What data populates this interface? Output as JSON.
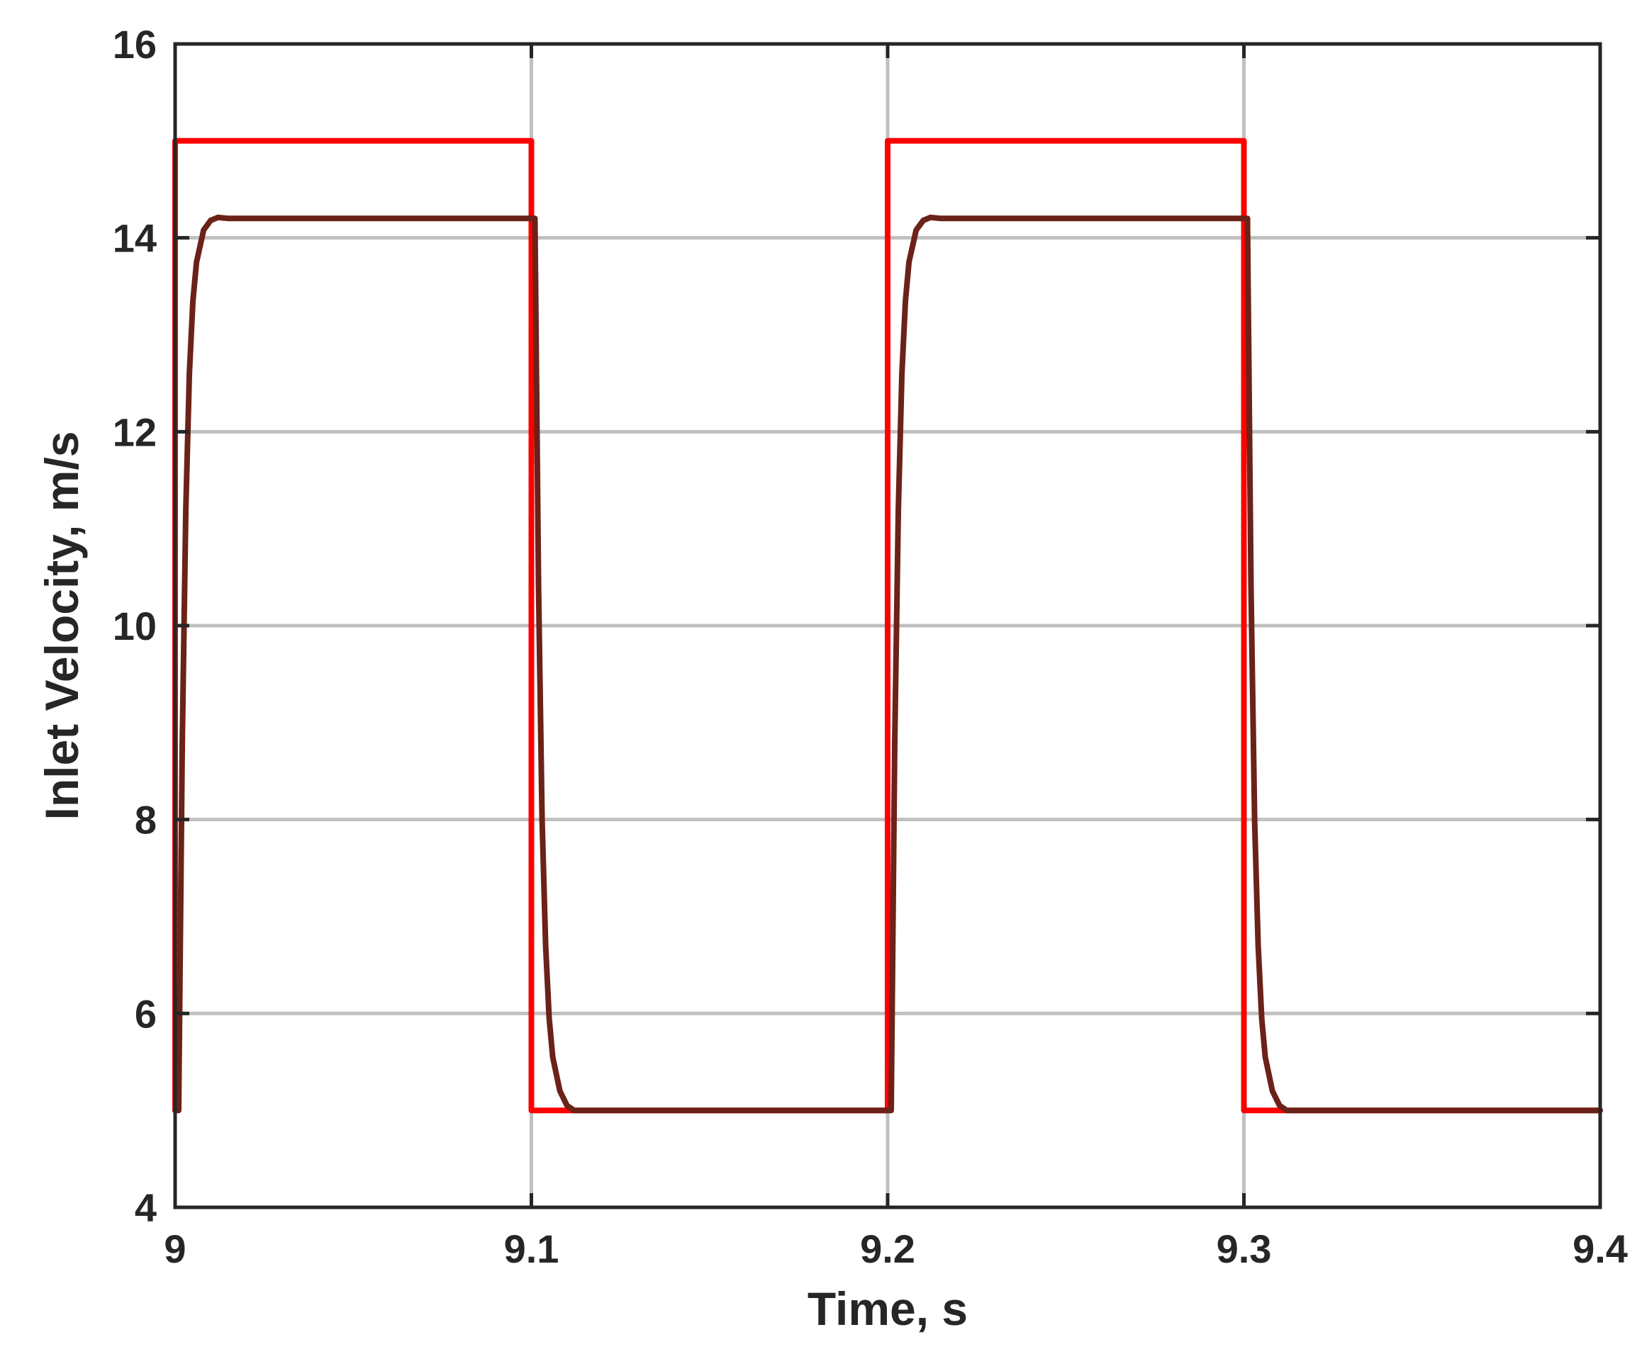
{
  "chart_data": {
    "type": "line",
    "title": "",
    "xlabel": "Time, s",
    "ylabel": "Inlet Velocity, m/s",
    "xlim": [
      9,
      9.4
    ],
    "ylim": [
      4,
      16
    ],
    "x_ticks": [
      9,
      9.1,
      9.2,
      9.3,
      9.4
    ],
    "x_tick_labels": [
      "9",
      "9.1",
      "9.2",
      "9.3",
      "9.4"
    ],
    "y_ticks": [
      4,
      6,
      8,
      10,
      12,
      14,
      16
    ],
    "y_tick_labels": [
      "4",
      "6",
      "8",
      "10",
      "12",
      "14",
      "16"
    ],
    "grid": true,
    "legend": "none",
    "series": [
      {
        "color": "#ff0000",
        "x": [
          9.0,
          9.0,
          9.1,
          9.1,
          9.2,
          9.2,
          9.3,
          9.3,
          9.4
        ],
        "y": [
          5,
          15,
          15,
          5,
          5,
          15,
          15,
          5,
          5
        ]
      },
      {
        "color": "#6b2218",
        "x": [
          9.0,
          9.001,
          9.002,
          9.003,
          9.004,
          9.005,
          9.006,
          9.008,
          9.01,
          9.012,
          9.015,
          9.1,
          9.101,
          9.102,
          9.103,
          9.104,
          9.105,
          9.106,
          9.108,
          9.11,
          9.112,
          9.115,
          9.2,
          9.201,
          9.202,
          9.203,
          9.204,
          9.205,
          9.206,
          9.208,
          9.21,
          9.212,
          9.215,
          9.3,
          9.301,
          9.302,
          9.303,
          9.304,
          9.305,
          9.306,
          9.308,
          9.31,
          9.312,
          9.315,
          9.4
        ],
        "y": [
          5,
          5,
          8.8,
          11.2,
          12.6,
          13.35,
          13.75,
          14.08,
          14.18,
          14.21,
          14.2,
          14.2,
          14.2,
          10.4,
          8.0,
          6.7,
          5.95,
          5.55,
          5.2,
          5.05,
          5.0,
          5.0,
          5.0,
          5.0,
          8.8,
          11.2,
          12.6,
          13.35,
          13.75,
          14.08,
          14.18,
          14.21,
          14.2,
          14.2,
          14.2,
          10.4,
          8.0,
          6.7,
          5.95,
          5.55,
          5.2,
          5.05,
          5.0,
          5.0,
          5.0
        ]
      }
    ]
  }
}
